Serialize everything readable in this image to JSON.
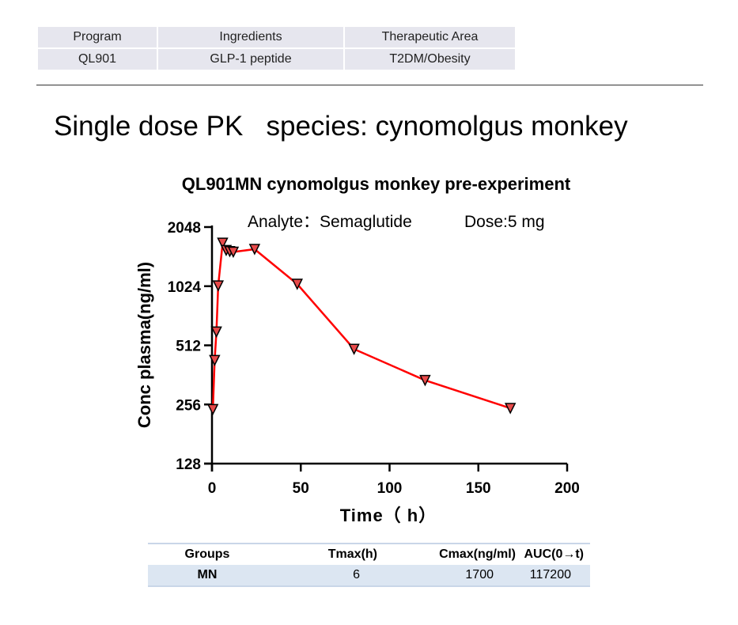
{
  "info_table": {
    "headers": [
      "Program",
      "Ingredients",
      "Therapeutic Area"
    ],
    "row": [
      "QL901",
      "GLP-1 peptide",
      "T2DM/Obesity"
    ]
  },
  "slide_title": "Single dose PK   species: cynomolgus monkey",
  "chart_data": {
    "type": "line",
    "title": "QL901MN cynomolgus monkey pre-experiment",
    "annotations": [
      "Analyte：Semaglutide",
      "Dose:5 mg"
    ],
    "xlabel": "Time（ h）",
    "ylabel": "Conc plasma(ng/ml)",
    "xlim": [
      0,
      200
    ],
    "ylim": [
      128,
      2048
    ],
    "yscale": "log2",
    "xticks": [
      "0",
      "50",
      "100",
      "150",
      "200"
    ],
    "yticks": [
      "128",
      "256",
      "512",
      "1024",
      "2048"
    ],
    "series": [
      {
        "name": "MN",
        "color": "#ff0000",
        "marker": "down-triangle",
        "x": [
          0.5,
          1.5,
          2.5,
          3.5,
          6,
          8,
          10,
          12,
          24,
          48,
          80,
          120,
          168
        ],
        "y": [
          242,
          430,
          600,
          1030,
          1700,
          1560,
          1540,
          1530,
          1580,
          1050,
          490,
          340,
          245
        ]
      }
    ]
  },
  "pk_table": {
    "headers": [
      "Groups",
      "Tmax(h)",
      "Cmax(ng/ml)",
      "AUC(0→t)"
    ],
    "row": [
      "MN",
      "6",
      "1700",
      "117200"
    ]
  }
}
